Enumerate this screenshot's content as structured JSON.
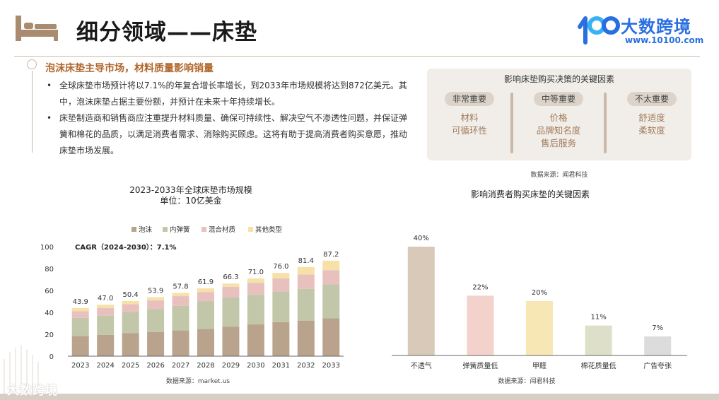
{
  "header": {
    "title": "细分领域——床垫",
    "logo_name": "大数跨境",
    "logo_url": "www.10100.com"
  },
  "section": {
    "heading": "泡沫床垫主导市场，材料质量影响销量",
    "bullets": [
      "全球床垫市场预计将以7.1%的年复合增长率增长，到2033年市场规模将达到872亿美元。其中，泡沫床垫占据主要份额，并预计在未来十年持续增长。",
      "床垫制造商和销售商应注重提升材料质量、确保可持续性、解决空气不渗透性问题，并保证弹簧和棉花的品质，以满足消费者需求、消除购买顾虑。这将有助于提高消费者购买意愿，推动床垫市场发展。"
    ]
  },
  "factors": {
    "title": "影响床垫购买决策的关键因素",
    "columns": [
      {
        "label": "非常重要",
        "items": [
          "材料",
          "可循环性"
        ]
      },
      {
        "label": "中等重要",
        "items": [
          "价格",
          "品牌知名度",
          "售后服务"
        ]
      },
      {
        "label": "不太重要",
        "items": [
          "舒适度",
          "柔软度"
        ]
      }
    ],
    "source": "数据来源：闻君科技"
  },
  "footer": {
    "logo": "大数跨境"
  },
  "colors": {
    "foam": "#b9a38d",
    "spring": "#c1c7a8",
    "hybrid": "#e8c1bf",
    "other": "#f6e1a8",
    "accent": "#b0672b"
  },
  "chart_data": [
    {
      "type": "bar",
      "stacked": true,
      "title": "2023-2033年全球床垫市场规模",
      "subtitle": "单位：10亿美金",
      "annotation": "CAGR（2024-2030）：7.1%",
      "categories": [
        "2023",
        "2024",
        "2025",
        "2026",
        "2027",
        "2028",
        "2029",
        "2030",
        "2031",
        "2032",
        "2033"
      ],
      "totals": [
        "43.9",
        "47.0",
        "50.4",
        "53.9",
        "57.8",
        "61.9",
        "66.3",
        "71.0",
        "76.0",
        "81.4",
        "87.2"
      ],
      "series": [
        {
          "name": "泡沫",
          "color": "#b9a38d",
          "values": [
            18.5,
            19.5,
            21,
            22,
            23.5,
            25,
            27,
            29,
            31,
            32.5,
            34.5
          ]
        },
        {
          "name": "内弹簧",
          "color": "#c1c7a8",
          "values": [
            16.5,
            17.5,
            19,
            21,
            22.5,
            25,
            26.5,
            27,
            28,
            29,
            31
          ]
        },
        {
          "name": "混合材质",
          "color": "#e8c1bf",
          "values": [
            6,
            7,
            7.4,
            7.9,
            8.8,
            8.6,
            9.8,
            11,
            12,
            13,
            13
          ]
        },
        {
          "name": "其他类型",
          "color": "#f6e1a8",
          "values": [
            2.9,
            3,
            3,
            3,
            3,
            3.3,
            3,
            4,
            5,
            6.9,
            8.7
          ]
        }
      ],
      "yticks": [
        "0",
        "20",
        "40",
        "60",
        "80",
        "100"
      ],
      "ylim": [
        0,
        100
      ],
      "legend": "top",
      "source": "数据来源：market.us"
    },
    {
      "type": "bar",
      "title": "影响消费者购买床垫的关键因素",
      "categories": [
        "不透气",
        "弹簧质量低",
        "甲醛",
        "棉花质量低",
        "广告夸张"
      ],
      "values": [
        40,
        22,
        20,
        11,
        7
      ],
      "labels": [
        "40%",
        "22%",
        "20%",
        "11%",
        "7%"
      ],
      "colors": [
        "#d9c9b8",
        "#f4d2cc",
        "#f6e7b4",
        "#dedfc9",
        "#dcdcdc"
      ],
      "ylim": [
        0,
        40
      ],
      "source": "数据来源：闻君科技"
    }
  ]
}
